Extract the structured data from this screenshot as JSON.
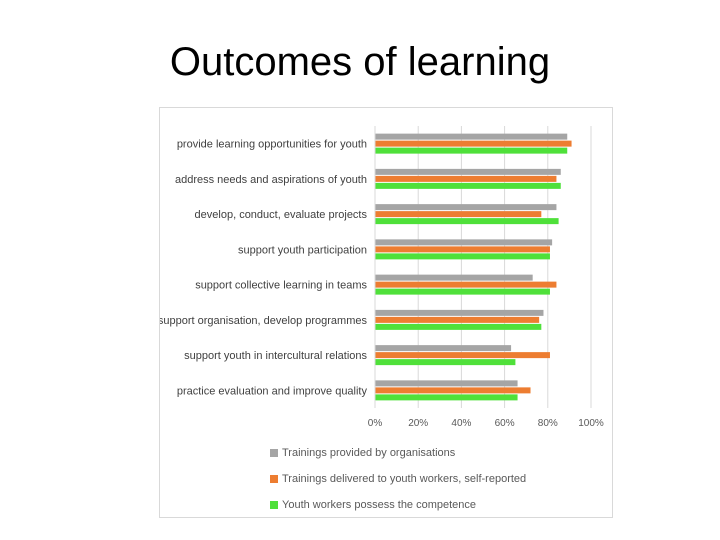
{
  "slide": {
    "title": "Outcomes of learning"
  },
  "chart_data": {
    "type": "bar",
    "orientation": "horizontal",
    "categories": [
      "provide learning opportunities for youth",
      "address needs and aspirations of youth",
      "develop, conduct, evaluate projects",
      "support youth participation",
      "support collective learning in teams",
      "support organisation, develop programmes",
      "support youth in intercultural relations",
      "practice evaluation and improve quality"
    ],
    "series": [
      {
        "name": "Trainings provided by organisations",
        "color": "#a5a5a5",
        "values": [
          0.89,
          0.86,
          0.84,
          0.82,
          0.73,
          0.78,
          0.63,
          0.66
        ]
      },
      {
        "name": "Trainings delivered to youth workers, self-reported",
        "color": "#ed7d31",
        "values": [
          0.91,
          0.84,
          0.77,
          0.81,
          0.84,
          0.76,
          0.81,
          0.72
        ]
      },
      {
        "name": "Youth workers possess the competence",
        "color": "#4fe03a",
        "values": [
          0.89,
          0.86,
          0.85,
          0.81,
          0.81,
          0.77,
          0.65,
          0.66
        ]
      }
    ],
    "xlim": [
      0,
      1
    ],
    "ticks": [
      "0%",
      "20%",
      "40%",
      "60%",
      "80%",
      "100%"
    ],
    "grid": true,
    "legend_position": "bottom"
  }
}
